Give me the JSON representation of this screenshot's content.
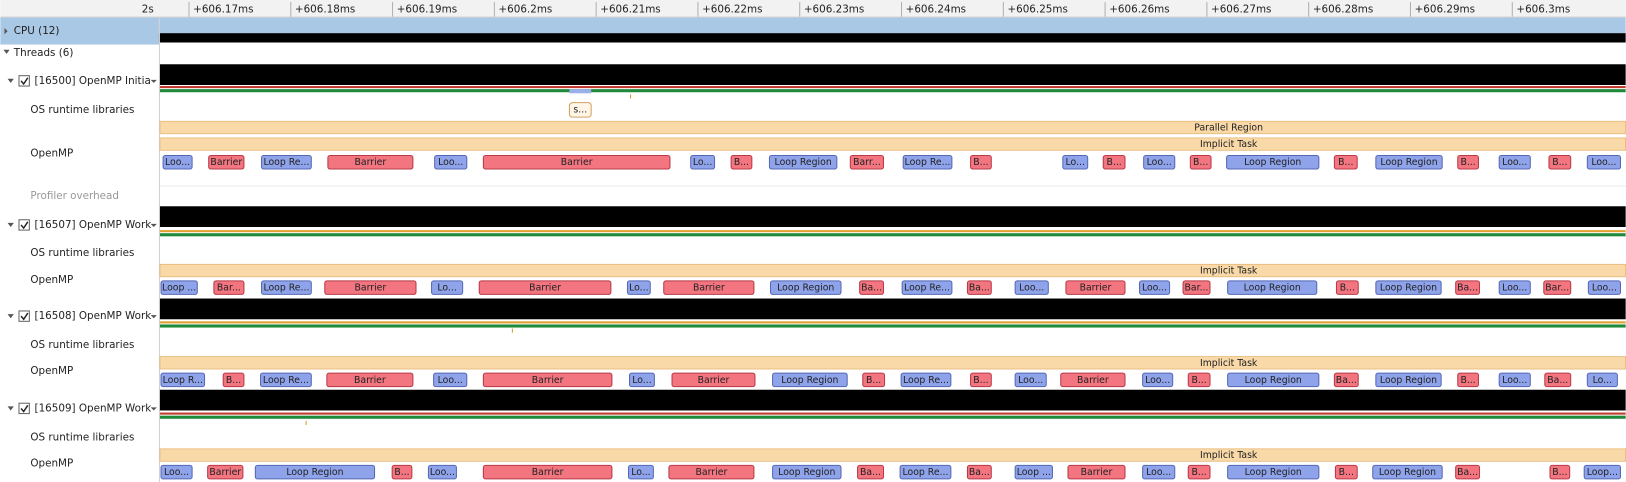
{
  "ruler": {
    "origin": "2s",
    "ticks": [
      "+606.17ms",
      "+606.18ms",
      "+606.19ms",
      "+606.2ms",
      "+606.21ms",
      "+606.22ms",
      "+606.23ms",
      "+606.24ms",
      "+606.25ms",
      "+606.26ms",
      "+606.27ms",
      "+606.28ms",
      "+606.29ms",
      "+606.3ms"
    ]
  },
  "tree": {
    "cpu": "CPU (12)",
    "threads_group": "Threads (6)"
  },
  "threads": [
    {
      "name": "[16500] OpenMP Initia",
      "os_row": "OS runtime libraries",
      "omp_row": "OpenMP",
      "overhead_row": "Profiler overhead",
      "os_events": [
        "s..."
      ],
      "ranges": [
        "Parallel Region",
        "Implicit Task"
      ],
      "events": [
        "Loo...",
        "Barrier",
        "Loop Re...",
        "Barrier",
        "Loo...",
        "Barrier",
        "Lo...",
        "B...",
        "Loop Region",
        "Barr...",
        "Loop Re...",
        "B...",
        "Lo...",
        "B...",
        "Loo...",
        "B...",
        "Loop Region",
        "B...",
        "Loop Region",
        "B...",
        "Loo...",
        "B...",
        "Loo..."
      ]
    },
    {
      "name": "[16507] OpenMP Work",
      "os_row": "OS runtime libraries",
      "omp_row": "OpenMP",
      "ranges": [
        "Implicit Task"
      ],
      "events": [
        "Loop ...",
        "Bar...",
        "Loop Re...",
        "Barrier",
        "Lo...",
        "Barrier",
        "Lo...",
        "Barrier",
        "Loop Region",
        "Ba...",
        "Loop Re...",
        "Ba...",
        "Loo...",
        "Barrier",
        "Loo...",
        "Bar...",
        "Loop Region",
        "B...",
        "Loop Region",
        "Ba...",
        "Loo...",
        "Bar...",
        "Loo..."
      ]
    },
    {
      "name": "[16508] OpenMP Work",
      "os_row": "OS runtime libraries",
      "omp_row": "OpenMP",
      "ranges": [
        "Implicit Task"
      ],
      "events": [
        "Loop R...",
        "B...",
        "Loop Re...",
        "Barrier",
        "Loo...",
        "Barrier",
        "Lo...",
        "Barrier",
        "Loop Region",
        "B...",
        "Loop Re...",
        "B...",
        "Loo...",
        "Barrier",
        "Loo...",
        "B...",
        "Loop Region",
        "Ba...",
        "Loop Region",
        "B...",
        "Loo...",
        "Ba...",
        "Lo..."
      ]
    },
    {
      "name": "[16509] OpenMP Work",
      "os_row": "OS runtime libraries",
      "omp_row": "OpenMP",
      "ranges": [
        "Implicit Task"
      ],
      "events": [
        "Loo...",
        "Barrier",
        "Loop Region",
        "B...",
        "Loo...",
        "Barrier",
        "Lo...",
        "Barrier",
        "Loop Region",
        "Ba...",
        "Loop Re...",
        "Ba...",
        "Loop ...",
        "Barrier",
        "Loo...",
        "B...",
        "Loop Region",
        "B...",
        "Loop Region",
        "Ba...",
        "B...",
        "Loop..."
      ]
    }
  ]
}
